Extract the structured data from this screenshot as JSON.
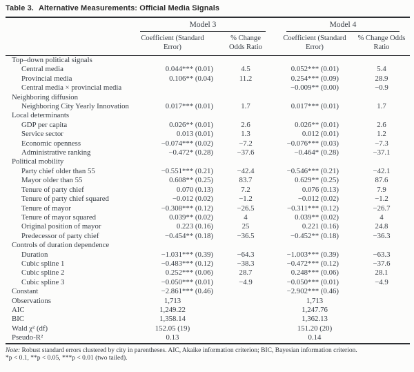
{
  "title": {
    "label": "Table 3.",
    "text": "Alternative Measurements: Official Media Signals"
  },
  "header": {
    "model3": "Model 3",
    "model4": "Model 4",
    "coef_header": "Coefficient (Standard\nError)",
    "m3_pct_header": "% Change\nOdds Ratio",
    "m4_pct_header": "% Change Odds\nRatio"
  },
  "rows": [
    {
      "type": "group",
      "label": "Top–down political signals"
    },
    {
      "type": "data",
      "label": "Central media",
      "m3_coef": "0.044*** (0.01)",
      "m3_pct": "4.5",
      "m4_coef": "0.052*** (0.01)",
      "m4_pct": "5.4"
    },
    {
      "type": "data",
      "label": "Provincial media",
      "m3_coef": "0.106** (0.04)",
      "m3_pct": "11.2",
      "m4_coef": "0.254*** (0.09)",
      "m4_pct": "28.9"
    },
    {
      "type": "data",
      "label": "Central media × provincial media",
      "m3_coef": "",
      "m3_pct": "",
      "m4_coef": "−0.009** (0.00)",
      "m4_pct": "−0.9"
    },
    {
      "type": "group",
      "label": "Neighboring diffusion"
    },
    {
      "type": "data",
      "label": "Neighboring City Yearly Innovation",
      "m3_coef": "0.017*** (0.01)",
      "m3_pct": "1.7",
      "m4_coef": "0.017*** (0.01)",
      "m4_pct": "1.7"
    },
    {
      "type": "group",
      "label": "Local determinants"
    },
    {
      "type": "data",
      "label": "GDP per capita",
      "m3_coef": "0.026** (0.01)",
      "m3_pct": "2.6",
      "m4_coef": "0.026** (0.01)",
      "m4_pct": "2.6"
    },
    {
      "type": "data",
      "label": "Service sector",
      "m3_coef": "0.013 (0.01)",
      "m3_pct": "1.3",
      "m4_coef": "0.012 (0.01)",
      "m4_pct": "1.2"
    },
    {
      "type": "data",
      "label": "Economic openness",
      "m3_coef": "−0.074*** (0.02)",
      "m3_pct": "−7.2",
      "m4_coef": "−0.076*** (0.03)",
      "m4_pct": "−7.3"
    },
    {
      "type": "data",
      "label": "Administrative ranking",
      "m3_coef": "−0.472* (0.28)",
      "m3_pct": "−37.6",
      "m4_coef": "−0.464* (0.28)",
      "m4_pct": "−37.1"
    },
    {
      "type": "group",
      "label": "Political mobility"
    },
    {
      "type": "data",
      "label": "Party chief older than 55",
      "m3_coef": "−0.551*** (0.21)",
      "m3_pct": "−42.4",
      "m4_coef": "−0.546*** (0.21)",
      "m4_pct": "−42.1"
    },
    {
      "type": "data",
      "label": "Mayor older than 55",
      "m3_coef": "0.608** (0.25)",
      "m3_pct": "83.7",
      "m4_coef": "0.629** (0.25)",
      "m4_pct": "87.6"
    },
    {
      "type": "data",
      "label": "Tenure of party chief",
      "m3_coef": "0.070 (0.13)",
      "m3_pct": "7.2",
      "m4_coef": "0.076 (0.13)",
      "m4_pct": "7.9"
    },
    {
      "type": "data",
      "label": "Tenure of party chief squared",
      "m3_coef": "−0.012 (0.02)",
      "m3_pct": "−1.2",
      "m4_coef": "−0.012 (0.02)",
      "m4_pct": "−1.2"
    },
    {
      "type": "data",
      "label": "Tenure of mayor",
      "m3_coef": "−0.308*** (0.12)",
      "m3_pct": "−26.5",
      "m4_coef": "−0.311*** (0.12)",
      "m4_pct": "−26.7"
    },
    {
      "type": "data",
      "label": "Tenure of mayor squared",
      "m3_coef": "0.039** (0.02)",
      "m3_pct": "4",
      "m4_coef": "0.039** (0.02)",
      "m4_pct": "4"
    },
    {
      "type": "data",
      "label": "Original position of mayor",
      "m3_coef": "0.223 (0.16)",
      "m3_pct": "25",
      "m4_coef": "0.221 (0.16)",
      "m4_pct": "24.8"
    },
    {
      "type": "data",
      "label": "Predecessor of party chief",
      "m3_coef": "−0.454** (0.18)",
      "m3_pct": "−36.5",
      "m4_coef": "−0.452** (0.18)",
      "m4_pct": "−36.3"
    },
    {
      "type": "group",
      "label": "Controls of duration dependence"
    },
    {
      "type": "data",
      "label": "Duration",
      "m3_coef": "−1.031*** (0.39)",
      "m3_pct": "−64.3",
      "m4_coef": "−1.003*** (0.39)",
      "m4_pct": "−63.3"
    },
    {
      "type": "data",
      "label": "Cubic spline 1",
      "m3_coef": "−0.483*** (0.12)",
      "m3_pct": "−38.3",
      "m4_coef": "−0.472*** (0.12)",
      "m4_pct": "−37.6"
    },
    {
      "type": "data",
      "label": "Cubic spline 2",
      "m3_coef": "0.252*** (0.06)",
      "m3_pct": "28.7",
      "m4_coef": "0.248*** (0.06)",
      "m4_pct": "28.1"
    },
    {
      "type": "data",
      "label": "Cubic spline 3",
      "m3_coef": "−0.050*** (0.01)",
      "m3_pct": "−4.9",
      "m4_coef": "−0.050*** (0.01)",
      "m4_pct": "−4.9"
    },
    {
      "type": "data",
      "label": "Constant",
      "flush": true,
      "m3_coef": "−2.861*** (0.46)",
      "m3_pct": "",
      "m4_coef": "−2.902*** (0.46)",
      "m4_pct": ""
    },
    {
      "type": "summary",
      "label": "Observations",
      "m3": "1,713",
      "m4": "1,713"
    },
    {
      "type": "summary",
      "label": "AIC",
      "m3": "1,249.22",
      "m4": "1,247.76"
    },
    {
      "type": "summary",
      "label": "BIC",
      "m3": "1,358.14",
      "m4": "1,362.13"
    },
    {
      "type": "summary",
      "label": "Wald χ² (df)",
      "m3": "152.05 (19)",
      "m4": "151.20 (20)"
    },
    {
      "type": "summary",
      "label": "Pseudo-R²",
      "m3": "0.13",
      "m4": "0.14"
    }
  ],
  "note": {
    "label": "Note:",
    "text": "Robust standard errors clustered by city in parentheses. AIC, Akaike information criterion; BIC, Bayesian information criterion.",
    "sig": "*p < 0.1, **p < 0.05, ***p < 0.01 (two tailed)."
  }
}
